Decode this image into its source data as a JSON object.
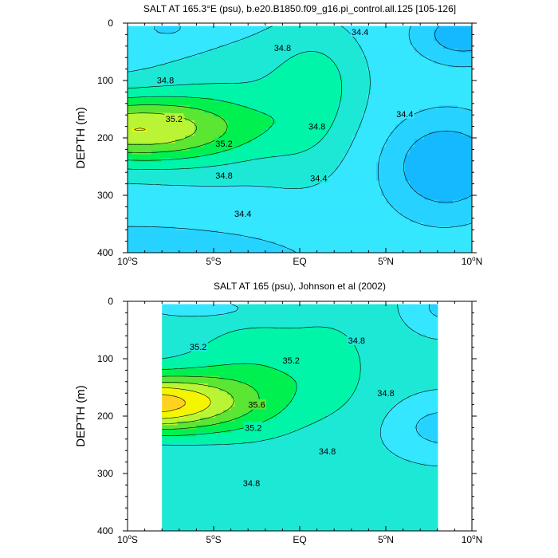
{
  "chart_data": [
    {
      "type": "contour",
      "title": "SALT AT 165.3°E (psu), b.e20.B1850.f09_g16.pi_control.all.125 [105-126]",
      "xlabel": "",
      "ylabel": "DEPTH (m)",
      "xlim": [
        -10,
        10
      ],
      "ylim": [
        0,
        400
      ],
      "y_inverted": true,
      "x_ticks": [
        {
          "value": -10,
          "label": "10°S"
        },
        {
          "value": -5,
          "label": "5°S"
        },
        {
          "value": 0,
          "label": "EQ"
        },
        {
          "value": 5,
          "label": "5°N"
        },
        {
          "value": 10,
          "label": "10°N"
        }
      ],
      "y_ticks": [
        {
          "value": 0,
          "label": "0"
        },
        {
          "value": 100,
          "label": "100"
        },
        {
          "value": 200,
          "label": "200"
        },
        {
          "value": 300,
          "label": "300"
        },
        {
          "value": 400,
          "label": "400"
        }
      ],
      "data_extent": {
        "lon": [
          -10,
          10
        ],
        "depth": [
          5,
          400
        ]
      },
      "contour_interval": 0.2,
      "contour_labels": [
        {
          "text": "34.8",
          "x": -7.8,
          "y": 99
        },
        {
          "text": "35.2",
          "x": -7.3,
          "y": 167
        },
        {
          "text": "35.2",
          "x": -4.4,
          "y": 210
        },
        {
          "text": "34.8",
          "x": -4.4,
          "y": 265
        },
        {
          "text": "34.4",
          "x": -3.3,
          "y": 332
        },
        {
          "text": "34.8",
          "x": -1.0,
          "y": 43
        },
        {
          "text": "34.8",
          "x": 1.0,
          "y": 180
        },
        {
          "text": "34.4",
          "x": 1.1,
          "y": 270
        },
        {
          "text": "34.4",
          "x": 3.5,
          "y": 15
        },
        {
          "text": "34.4",
          "x": 6.1,
          "y": 158
        }
      ],
      "colors": [
        "#14b9ff",
        "#26d2ff",
        "#35e6ff",
        "#1de8d6",
        "#00f5a8",
        "#00f050",
        "#5ae632",
        "#b9f534",
        "#f5f500",
        "#ffd21f"
      ]
    },
    {
      "type": "contour",
      "title": "SALT AT 165 (psu), Johnson et al (2002)",
      "xlabel": "",
      "ylabel": "DEPTH (m)",
      "xlim": [
        -10,
        10
      ],
      "ylim": [
        0,
        400
      ],
      "y_inverted": true,
      "x_ticks": [
        {
          "value": -10,
          "label": "10°S"
        },
        {
          "value": -5,
          "label": "5°S"
        },
        {
          "value": 0,
          "label": "EQ"
        },
        {
          "value": 5,
          "label": "5°N"
        },
        {
          "value": 10,
          "label": "10°N"
        }
      ],
      "y_ticks": [
        {
          "value": 0,
          "label": "0"
        },
        {
          "value": 100,
          "label": "100"
        },
        {
          "value": 200,
          "label": "200"
        },
        {
          "value": 300,
          "label": "300"
        },
        {
          "value": 400,
          "label": "400"
        }
      ],
      "data_extent": {
        "lon": [
          -8,
          8
        ],
        "depth": [
          5,
          400
        ]
      },
      "contour_interval": 0.2,
      "contour_labels": [
        {
          "text": "35.2",
          "x": -5.9,
          "y": 79
        },
        {
          "text": "35.2",
          "x": -0.5,
          "y": 103
        },
        {
          "text": "35.6",
          "x": -2.5,
          "y": 180
        },
        {
          "text": "35.2",
          "x": -2.7,
          "y": 220
        },
        {
          "text": "34.8",
          "x": 3.3,
          "y": 68
        },
        {
          "text": "34.8",
          "x": 5.0,
          "y": 160
        },
        {
          "text": "34.8",
          "x": 1.6,
          "y": 261
        },
        {
          "text": "34.8",
          "x": -2.8,
          "y": 317
        }
      ],
      "colors": [
        "#14b9ff",
        "#26d2ff",
        "#35e6ff",
        "#1de8d6",
        "#00f5a8",
        "#00f050",
        "#5ae632",
        "#b9f534",
        "#f5f500",
        "#ffd21f"
      ]
    }
  ]
}
